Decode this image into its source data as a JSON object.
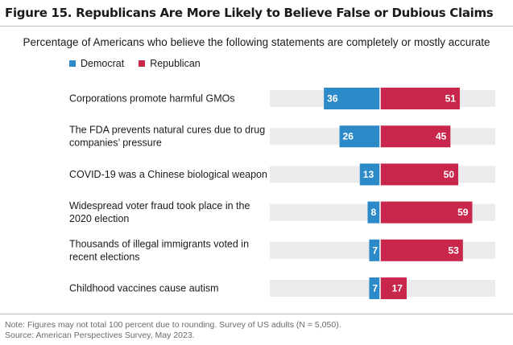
{
  "figure": {
    "title": "Figure 15. Republicans Are More Likely to Believe False or Dubious Claims",
    "subtitle": "Percentage of Americans who believe the following statements are completely or mostly accurate"
  },
  "legend": {
    "democrat_label": "Democrat",
    "republican_label": "Republican"
  },
  "colors": {
    "democrat": "#2d8ac9",
    "republican": "#c8264a",
    "track": "#ebebeb"
  },
  "chart_data": {
    "type": "bar",
    "orientation": "horizontal-diverging",
    "categories": [
      [
        "Corporations promote harmful GMOs"
      ],
      [
        "The FDA prevents natural cures due to drug",
        "companies’ pressure"
      ],
      [
        "COVID-19 was a Chinese biological weapon"
      ],
      [
        "Widespread voter fraud took place in the",
        "2020 election"
      ],
      [
        "Thousands of illegal immigrants voted in",
        "recent elections"
      ],
      [
        "Childhood vaccines cause autism"
      ]
    ],
    "series": [
      {
        "name": "Democrat",
        "values": [
          36,
          26,
          13,
          8,
          7,
          7
        ]
      },
      {
        "name": "Republican",
        "values": [
          51,
          45,
          50,
          59,
          53,
          17
        ]
      }
    ],
    "xlim": [
      0,
      100
    ],
    "title": "Figure 15. Republicans Are More Likely to Believe False or Dubious Claims",
    "xlabel": "",
    "ylabel": ""
  },
  "footer": {
    "note": "Note: Figures may not total 100 percent due to rounding. Survey of US adults (N = 5,050).",
    "source": "Source: American Perspectives Survey, May 2023."
  }
}
